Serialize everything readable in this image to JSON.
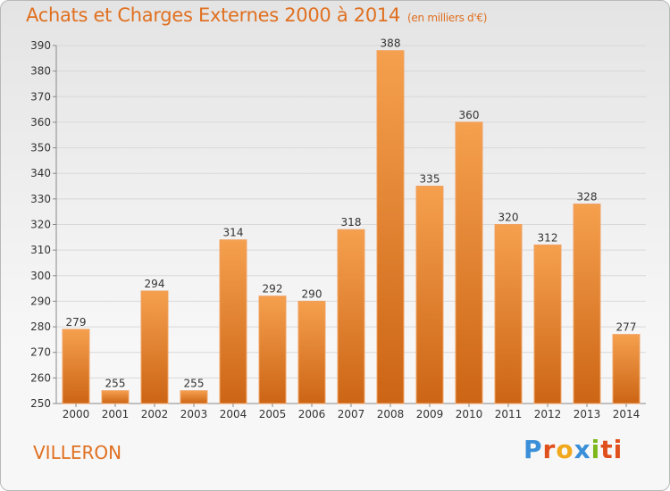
{
  "chart_data": {
    "type": "bar",
    "title": "Achats et Charges Externes 2000 à 2014",
    "subtitle": "(en milliers d'€)",
    "categories": [
      "2000",
      "2001",
      "2002",
      "2003",
      "2004",
      "2005",
      "2006",
      "2007",
      "2008",
      "2009",
      "2010",
      "2011",
      "2012",
      "2013",
      "2014"
    ],
    "values": [
      279,
      255,
      294,
      255,
      314,
      292,
      290,
      318,
      388,
      335,
      360,
      320,
      312,
      328,
      277
    ],
    "ylim": [
      250,
      390
    ],
    "yticks": [
      250,
      260,
      270,
      280,
      290,
      300,
      310,
      320,
      330,
      340,
      350,
      360,
      370,
      380,
      390
    ],
    "grid": true,
    "bar_color_top": "#f5a04e",
    "bar_color_bottom": "#cc6515",
    "grid_color": "#d8d8d8"
  },
  "footer": {
    "town": "VILLERON",
    "logo_text": "Proxiti",
    "logo_colors": [
      "#3a8fd8",
      "#e0501c",
      "#f2a81c",
      "#3a8fd8",
      "#7cb81c",
      "#e0501c",
      "#e0501c"
    ]
  }
}
